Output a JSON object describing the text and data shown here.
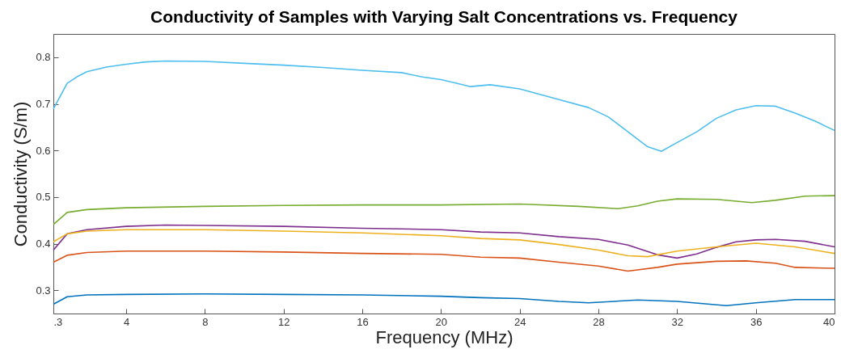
{
  "chart_data": {
    "type": "line",
    "title": "Conductivity of Samples with Varying Salt Concentrations vs. Frequency",
    "xlabel": "Frequency (MHz)",
    "ylabel": "Conductivity (S/m)",
    "xlim": [
      0.3,
      40
    ],
    "xticks": [
      {
        "value": 0.3,
        "label": ".3"
      },
      4,
      8,
      12,
      16,
      20,
      24,
      28,
      32,
      36,
      40
    ],
    "ylim": [
      0.25,
      0.85
    ],
    "yticks": [
      0.3,
      0.4,
      0.5,
      0.6,
      0.7,
      0.8
    ],
    "grid": false,
    "legend": false,
    "line_style": "solid",
    "marker": "none",
    "series": [
      {
        "color": "#4dbeee",
        "x": [
          0.3,
          1,
          1.5,
          2,
          3,
          4,
          5,
          6,
          8,
          10,
          12,
          14,
          16,
          18,
          19,
          20,
          21,
          21.5,
          22.5,
          24,
          26,
          27.5,
          28.5,
          29.5,
          30.5,
          31.2,
          32,
          33,
          34,
          35,
          36,
          37,
          38,
          39,
          40
        ],
        "values": [
          0.689,
          0.744,
          0.758,
          0.769,
          0.779,
          0.785,
          0.79,
          0.792,
          0.791,
          0.787,
          0.783,
          0.778,
          0.772,
          0.767,
          0.758,
          0.752,
          0.742,
          0.737,
          0.741,
          0.732,
          0.709,
          0.692,
          0.672,
          0.64,
          0.608,
          0.598,
          0.617,
          0.64,
          0.669,
          0.687,
          0.696,
          0.695,
          0.68,
          0.663,
          0.643
        ]
      },
      {
        "color": "#77ac30",
        "x": [
          0.3,
          1,
          2,
          4,
          8,
          12,
          16,
          20,
          24,
          27,
          29,
          30,
          31,
          32,
          34,
          35.8,
          37,
          38.5,
          40
        ],
        "values": [
          0.441,
          0.467,
          0.473,
          0.477,
          0.48,
          0.482,
          0.483,
          0.483,
          0.485,
          0.48,
          0.475,
          0.481,
          0.491,
          0.496,
          0.495,
          0.488,
          0.493,
          0.502,
          0.503
        ]
      },
      {
        "color": "#7e2f8e",
        "x": [
          0.3,
          1,
          2,
          4,
          6,
          8,
          12,
          16,
          20,
          22,
          24,
          26,
          28,
          29.5,
          31,
          32,
          33,
          34,
          35,
          36,
          37,
          38.5,
          40
        ],
        "values": [
          0.386,
          0.421,
          0.43,
          0.437,
          0.44,
          0.439,
          0.437,
          0.433,
          0.43,
          0.425,
          0.423,
          0.415,
          0.409,
          0.397,
          0.376,
          0.369,
          0.378,
          0.392,
          0.404,
          0.408,
          0.409,
          0.405,
          0.393
        ]
      },
      {
        "color": "#edb120",
        "x": [
          0.3,
          1,
          2,
          4,
          8,
          12,
          16,
          20,
          22,
          24,
          26,
          28,
          29.5,
          30.5,
          32,
          34,
          36,
          38,
          40
        ],
        "values": [
          0.404,
          0.421,
          0.427,
          0.43,
          0.43,
          0.427,
          0.423,
          0.417,
          0.411,
          0.408,
          0.398,
          0.386,
          0.374,
          0.372,
          0.384,
          0.393,
          0.401,
          0.393,
          0.379
        ]
      },
      {
        "color": "#d95319",
        "x": [
          0.3,
          1,
          2,
          4,
          8,
          12,
          16,
          20,
          22,
          24,
          26,
          28,
          29.5,
          31,
          32,
          34,
          35.5,
          37,
          38,
          40
        ],
        "values": [
          0.36,
          0.375,
          0.381,
          0.384,
          0.384,
          0.382,
          0.379,
          0.377,
          0.371,
          0.369,
          0.36,
          0.352,
          0.341,
          0.349,
          0.356,
          0.362,
          0.363,
          0.358,
          0.349,
          0.347
        ]
      },
      {
        "color": "#0072bd",
        "x": [
          0.3,
          1,
          2,
          4,
          8,
          12,
          16,
          20,
          22,
          24,
          26,
          27.5,
          30,
          32,
          34.5,
          36,
          38,
          40
        ],
        "values": [
          0.27,
          0.286,
          0.29,
          0.291,
          0.292,
          0.291,
          0.29,
          0.287,
          0.284,
          0.282,
          0.276,
          0.273,
          0.279,
          0.276,
          0.267,
          0.273,
          0.28,
          0.28
        ]
      }
    ]
  }
}
